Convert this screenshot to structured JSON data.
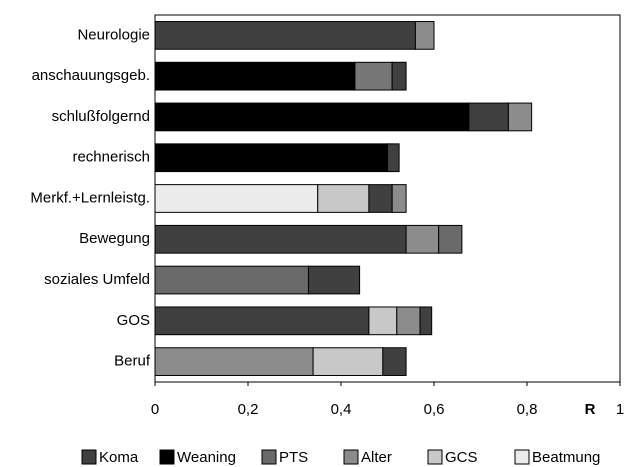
{
  "chart_data": {
    "type": "stacked-bar",
    "orientation": "horizontal",
    "xlabel": "R",
    "xlim": [
      0,
      1
    ],
    "xticks": [
      0,
      {
        "value": 0.2,
        "label": "0,2"
      },
      {
        "value": 0.4,
        "label": "0,4"
      },
      {
        "value": 0.6,
        "label": "0,6"
      },
      {
        "value": 0.8,
        "label": "0,8"
      },
      1
    ],
    "legend": [
      {
        "name": "Koma",
        "color": "#404040"
      },
      {
        "name": "Weaning",
        "color": "#000000"
      },
      {
        "name": "PTS",
        "color": "#6a6a6a"
      },
      {
        "name": "Alter",
        "color": "#8c8c8c"
      },
      {
        "name": "GCS",
        "color": "#c8c8c8"
      },
      {
        "name": "Beatmung",
        "color": "#ececec"
      }
    ],
    "bars": [
      {
        "category": "Neurologie",
        "segments": [
          {
            "value": 0.56,
            "color": "#404040"
          },
          {
            "value": 0.04,
            "color": "#8c8c8c"
          }
        ]
      },
      {
        "category": "anschauungsgeb.",
        "segments": [
          {
            "value": 0.43,
            "color": "#000000"
          },
          {
            "value": 0.08,
            "color": "#777777"
          },
          {
            "value": 0.03,
            "color": "#404040"
          }
        ]
      },
      {
        "category": "schlußfolgernd",
        "segments": [
          {
            "value": 0.675,
            "color": "#000000"
          },
          {
            "value": 0.085,
            "color": "#404040"
          },
          {
            "value": 0.05,
            "color": "#8c8c8c"
          }
        ]
      },
      {
        "category": "rechnerisch",
        "segments": [
          {
            "value": 0.5,
            "color": "#000000"
          },
          {
            "value": 0.025,
            "color": "#404040"
          }
        ]
      },
      {
        "category": "Merkf.+Lernleistg.",
        "segments": [
          {
            "value": 0.35,
            "color": "#ececec"
          },
          {
            "value": 0.11,
            "color": "#c8c8c8"
          },
          {
            "value": 0.05,
            "color": "#404040"
          },
          {
            "value": 0.03,
            "color": "#8c8c8c"
          }
        ]
      },
      {
        "category": "Bewegung",
        "segments": [
          {
            "value": 0.54,
            "color": "#404040"
          },
          {
            "value": 0.07,
            "color": "#8c8c8c"
          },
          {
            "value": 0.05,
            "color": "#6a6a6a"
          }
        ]
      },
      {
        "category": "soziales Umfeld",
        "segments": [
          {
            "value": 0.33,
            "color": "#6a6a6a"
          },
          {
            "value": 0.11,
            "color": "#404040"
          }
        ]
      },
      {
        "category": "GOS",
        "segments": [
          {
            "value": 0.46,
            "color": "#404040"
          },
          {
            "value": 0.06,
            "color": "#c8c8c8"
          },
          {
            "value": 0.05,
            "color": "#8c8c8c"
          },
          {
            "value": 0.025,
            "color": "#404040"
          }
        ]
      },
      {
        "category": "Beruf",
        "segments": [
          {
            "value": 0.34,
            "color": "#8c8c8c"
          },
          {
            "value": 0.15,
            "color": "#c8c8c8"
          },
          {
            "value": 0.05,
            "color": "#404040"
          }
        ]
      }
    ]
  }
}
